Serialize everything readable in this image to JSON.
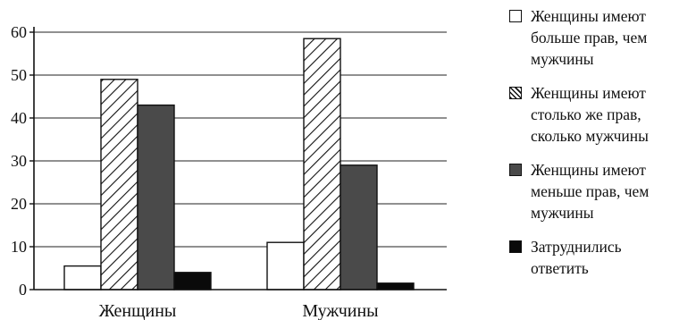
{
  "chart_data": {
    "type": "bar",
    "categories": [
      "Женщины",
      "Мужчины"
    ],
    "series": [
      {
        "name": "Женщины имеют больше прав, чем мужчины",
        "values": [
          5.5,
          11
        ],
        "color": "#ffffff",
        "pattern": "solid-white"
      },
      {
        "name": "Женщины имеют столько же прав, сколько мужчины",
        "values": [
          49,
          58.5
        ],
        "color": "#ffffff",
        "pattern": "diagonal-hatch"
      },
      {
        "name": "Женщины имеют меньше прав, чем мужчины",
        "values": [
          43,
          29
        ],
        "color": "#4a4a4a",
        "pattern": "solid-gray"
      },
      {
        "name": "Затруднились ответить",
        "values": [
          4,
          1.5
        ],
        "color": "#0a0a0a",
        "pattern": "solid-black"
      }
    ],
    "y_ticks": [
      0,
      10,
      20,
      30,
      40,
      50,
      60
    ],
    "ylim": [
      0,
      60
    ],
    "grid": true,
    "legend_position": "right"
  },
  "legend": {
    "items": [
      {
        "label": "Женщины имеют\nбольше прав, чем\nмужчины"
      },
      {
        "label": "Женщины имеют\nстолько же прав,\nсколько мужчины"
      },
      {
        "label": "Женщины имеют\nменьше прав, чем\nмужчины"
      },
      {
        "label": "Затруднились\nответить"
      }
    ]
  }
}
